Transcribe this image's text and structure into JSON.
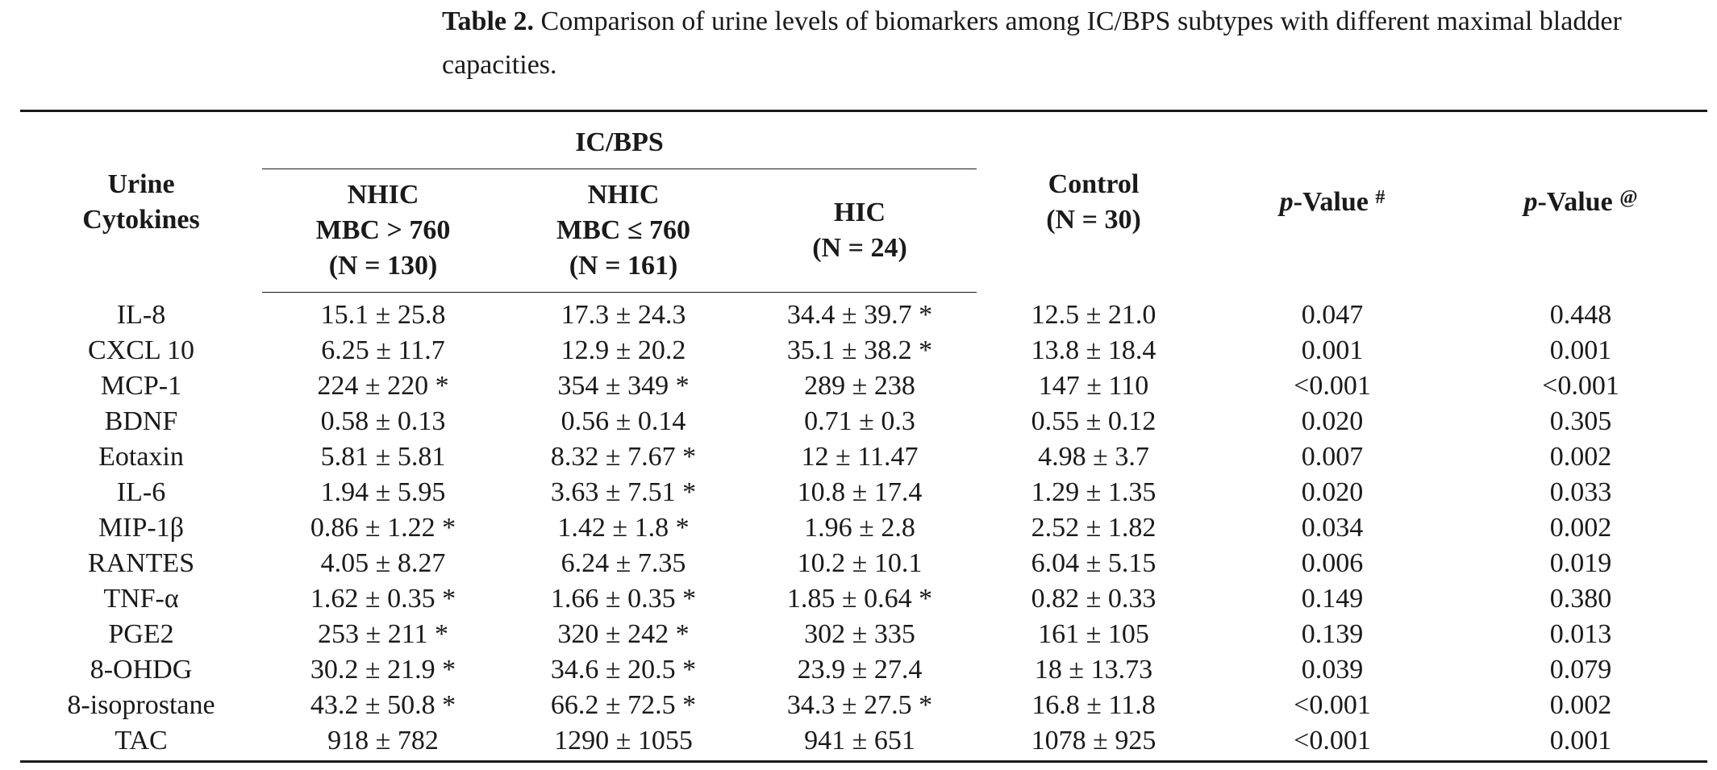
{
  "caption": {
    "label": "Table 2.",
    "text": " Comparison of urine levels of biomarkers among IC/BPS subtypes with different maximal bladder capacities."
  },
  "header": {
    "row_label": [
      "Urine",
      "Cytokines"
    ],
    "group": "IC/BPS",
    "nhic1": [
      "NHIC",
      "MBC > 760",
      "(N = 130)"
    ],
    "nhic2": [
      "NHIC",
      "MBC ≤ 760",
      "(N = 161)"
    ],
    "hic": [
      "HIC",
      "(N = 24)"
    ],
    "control": [
      "Control",
      "(N = 30)"
    ],
    "pval1": {
      "p": "p",
      "rest": "-Value",
      "sup": "#"
    },
    "pval2": {
      "p": "p",
      "rest": "-Value",
      "sup": "@"
    }
  },
  "rows": [
    [
      "IL-8",
      "15.1 ± 25.8",
      "17.3 ± 24.3",
      "34.4 ± 39.7 *",
      "12.5 ± 21.0",
      "0.047",
      "0.448"
    ],
    [
      "CXCL 10",
      "6.25 ± 11.7",
      "12.9 ± 20.2",
      "35.1 ± 38.2 *",
      "13.8 ± 18.4",
      "0.001",
      "0.001"
    ],
    [
      "MCP-1",
      "224 ± 220 *",
      "354 ± 349 *",
      "289 ± 238",
      "147 ± 110",
      "<0.001",
      "<0.001"
    ],
    [
      "BDNF",
      "0.58 ± 0.13",
      "0.56 ± 0.14",
      "0.71 ± 0.3",
      "0.55 ± 0.12",
      "0.020",
      "0.305"
    ],
    [
      "Eotaxin",
      "5.81 ± 5.81",
      "8.32 ± 7.67 *",
      "12 ± 11.47",
      "4.98 ± 3.7",
      "0.007",
      "0.002"
    ],
    [
      "IL-6",
      "1.94 ± 5.95",
      "3.63 ± 7.51 *",
      "10.8 ± 17.4",
      "1.29 ± 1.35",
      "0.020",
      "0.033"
    ],
    [
      "MIP-1β",
      "0.86 ± 1.22 *",
      "1.42 ± 1.8 *",
      "1.96 ± 2.8",
      "2.52 ± 1.82",
      "0.034",
      "0.002"
    ],
    [
      "RANTES",
      "4.05 ± 8.27",
      "6.24 ± 7.35",
      "10.2 ± 10.1",
      "6.04 ± 5.15",
      "0.006",
      "0.019"
    ],
    [
      "TNF-α",
      "1.62 ± 0.35 *",
      "1.66 ± 0.35 *",
      "1.85 ± 0.64 *",
      "0.82 ± 0.33",
      "0.149",
      "0.380"
    ],
    [
      "PGE2",
      "253 ± 211 *",
      "320 ± 242 *",
      "302 ± 335",
      "161 ± 105",
      "0.139",
      "0.013"
    ],
    [
      "8-OHDG",
      "30.2 ± 21.9 *",
      "34.6 ± 20.5 *",
      "23.9 ± 27.4",
      "18 ± 13.73",
      "0.039",
      "0.079"
    ],
    [
      "8-isoprostane",
      "43.2 ± 50.8 *",
      "66.2 ± 72.5 *",
      "34.3 ± 27.5 *",
      "16.8 ± 11.8",
      "<0.001",
      "0.002"
    ],
    [
      "TAC",
      "918 ± 782",
      "1290 ± 1055",
      "941 ± 651",
      "1078 ± 925",
      "<0.001",
      "0.001"
    ]
  ]
}
